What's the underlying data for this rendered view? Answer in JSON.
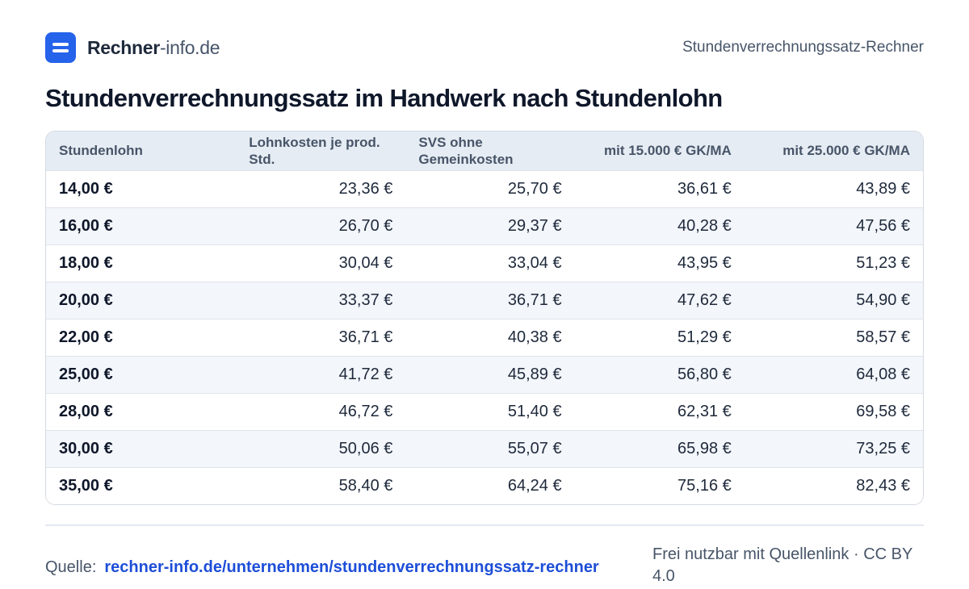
{
  "header": {
    "brand_strong": "Rechner",
    "brand_light": "-info.de",
    "page_label": "Stundenverrechnungssatz-Rechner",
    "accent_color": "#2563eb",
    "logo_icon": "calculator-equals-icon"
  },
  "title": "Stundenverrechnungssatz im Handwerk nach Stundenlohn",
  "table": {
    "columns": [
      "Stundenlohn",
      "Lohnkosten je prod. Std.",
      "SVS ohne Gemeinkosten",
      "mit 15.000 € GK/MA",
      "mit 25.000 € GK/MA"
    ],
    "rows": [
      [
        "14,00 €",
        "23,36 €",
        "25,70 €",
        "36,61 €",
        "43,89 €"
      ],
      [
        "16,00 €",
        "26,70 €",
        "29,37 €",
        "40,28 €",
        "47,56 €"
      ],
      [
        "18,00 €",
        "30,04 €",
        "33,04 €",
        "43,95 €",
        "51,23 €"
      ],
      [
        "20,00 €",
        "33,37 €",
        "36,71 €",
        "47,62 €",
        "54,90 €"
      ],
      [
        "22,00 €",
        "36,71 €",
        "40,38 €",
        "51,29 €",
        "58,57 €"
      ],
      [
        "25,00 €",
        "41,72 €",
        "45,89 €",
        "56,80 €",
        "64,08 €"
      ],
      [
        "28,00 €",
        "46,72 €",
        "51,40 €",
        "62,31 €",
        "69,58 €"
      ],
      [
        "30,00 €",
        "50,06 €",
        "55,07 €",
        "65,98 €",
        "73,25 €"
      ],
      [
        "35,00 €",
        "58,40 €",
        "64,24 €",
        "75,16 €",
        "82,43 €"
      ]
    ]
  },
  "footer": {
    "source_label": "Quelle:",
    "source_link": "rechner-info.de/unternehmen/stundenverrechnungssatz-rechner",
    "license": "Frei nutzbar mit Quellenlink · CC BY 4.0"
  }
}
